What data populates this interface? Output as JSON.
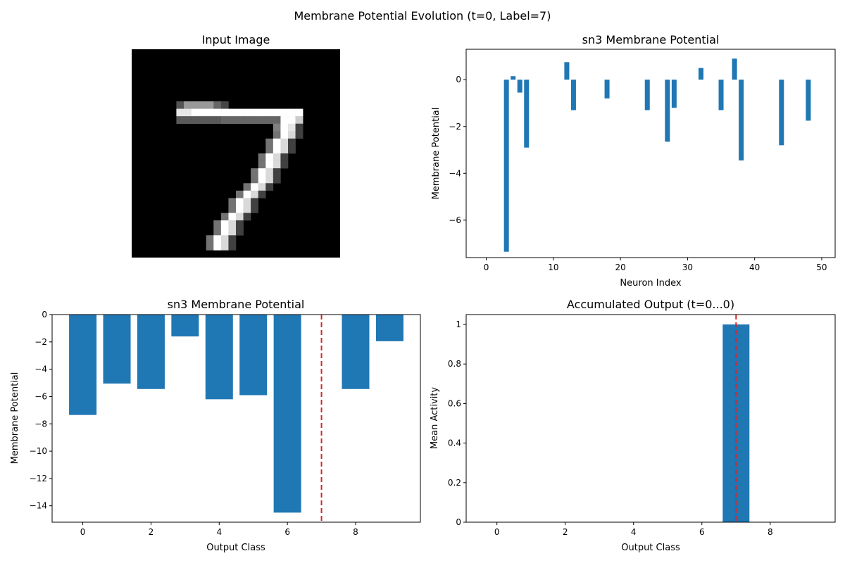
{
  "figure": {
    "suptitle": "Membrane Potential Evolution (t=0, Label=7)"
  },
  "colors": {
    "bar": "#1f77b4",
    "label_line": "#d62728"
  },
  "chart_data": [
    {
      "type": "heatmap",
      "title": "Input Image",
      "colormap": "gray",
      "description_rows": 28,
      "description_cols": 28,
      "digit": "7"
    },
    {
      "type": "bar",
      "title": "sn3 Membrane Potential",
      "xlabel": "Neuron Index",
      "ylabel": "Membrane Potential",
      "xlim": [
        -3,
        52
      ],
      "ylim": [
        -7.6,
        1.3
      ],
      "xticks": [
        0,
        10,
        20,
        30,
        40,
        50
      ],
      "yticks": [
        -6,
        -4,
        -2,
        0
      ],
      "x": [
        3,
        4,
        5,
        6,
        12,
        13,
        18,
        24,
        27,
        28,
        32,
        35,
        37,
        38,
        44,
        48
      ],
      "values": [
        -7.35,
        0.15,
        -0.55,
        -2.9,
        0.75,
        -1.3,
        -0.8,
        -1.3,
        -2.65,
        -1.2,
        0.5,
        -1.3,
        0.9,
        -3.45,
        -2.8,
        -1.75
      ]
    },
    {
      "type": "bar",
      "title": "sn3 Membrane Potential",
      "xlabel": "Output Class",
      "ylabel": "Membrane Potential",
      "xlim": [
        -0.9,
        9.9
      ],
      "ylim": [
        -15.2,
        0
      ],
      "xticks": [
        0,
        2,
        4,
        6,
        8
      ],
      "yticks": [
        -14,
        -12,
        -10,
        -8,
        -6,
        -4,
        -2,
        0
      ],
      "x": [
        0,
        1,
        2,
        3,
        4,
        5,
        6,
        7,
        8,
        9
      ],
      "values": [
        -7.35,
        -5.05,
        -5.45,
        -1.6,
        -6.2,
        -5.9,
        -14.5,
        0,
        -5.45,
        -1.95
      ],
      "label_line_x": 7
    },
    {
      "type": "bar",
      "title": "Accumulated Output (t=0...0)",
      "xlabel": "Output Class",
      "ylabel": "Mean Activity",
      "xlim": [
        -0.9,
        9.9
      ],
      "ylim": [
        0,
        1.05
      ],
      "xticks": [
        0,
        2,
        4,
        6,
        8
      ],
      "yticks": [
        0.0,
        0.2,
        0.4,
        0.6,
        0.8,
        1.0
      ],
      "x": [
        0,
        1,
        2,
        3,
        4,
        5,
        6,
        7,
        8,
        9
      ],
      "values": [
        0,
        0,
        0,
        0,
        0,
        0,
        0,
        1.0,
        0,
        0
      ],
      "label_line_x": 7
    }
  ]
}
